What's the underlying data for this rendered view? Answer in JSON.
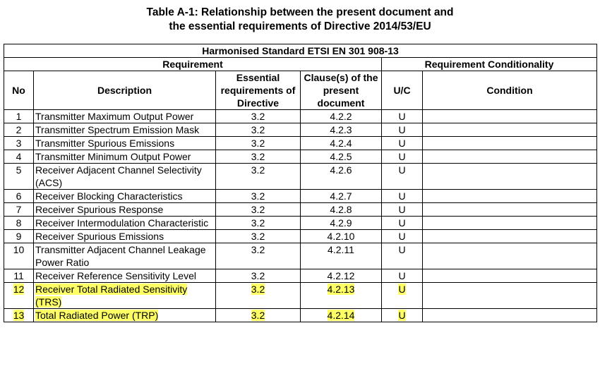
{
  "title": [
    "Table A-1: Relationship between the present document and",
    "the essential requirements of Directive 2014/53/EU"
  ],
  "table": {
    "standard": "Harmonised Standard ETSI EN 301 908-13",
    "group_headers": [
      "Requirement",
      "Requirement Conditionality"
    ],
    "columns": [
      "No",
      "Description",
      "Essential requirements of Directive",
      "Clause(s) of the present document",
      "U/C",
      "Condition"
    ],
    "rows": [
      {
        "no": "1",
        "description": "Transmitter Maximum Output Power",
        "essential": "3.2",
        "clause": "4.2.2",
        "uc": "U"
      },
      {
        "no": "2",
        "description": "Transmitter Spectrum Emission Mask",
        "essential": "3.2",
        "clause": "4.2.3",
        "uc": "U"
      },
      {
        "no": "3",
        "description": "Transmitter Spurious Emissions",
        "essential": "3.2",
        "clause": "4.2.4",
        "uc": "U"
      },
      {
        "no": "4",
        "description": "Transmitter Minimum Output Power",
        "essential": "3.2",
        "clause": "4.2.5",
        "uc": "U"
      },
      {
        "no": "5",
        "description": "Receiver Adjacent Channel Selectivity (ACS)",
        "essential": "3.2",
        "clause": "4.2.6",
        "uc": "U"
      },
      {
        "no": "6",
        "description": "Receiver Blocking Characteristics",
        "essential": "3.2",
        "clause": "4.2.7",
        "uc": "U"
      },
      {
        "no": "7",
        "description": "Receiver Spurious Response",
        "essential": "3.2",
        "clause": "4.2.8",
        "uc": "U"
      },
      {
        "no": "8",
        "description": "Receiver Intermodulation Characteristic",
        "essential": "3.2",
        "clause": "4.2.9",
        "uc": "U"
      },
      {
        "no": "9",
        "description": "Receiver Spurious Emissions",
        "essential": "3.2",
        "clause": "4.2.10",
        "uc": "U"
      },
      {
        "no": "10",
        "description": "Transmitter Adjacent Channel Leakage Power Ratio",
        "essential": "3.2",
        "clause": "4.2.11",
        "uc": "U"
      },
      {
        "no": "11",
        "description": "Receiver Reference Sensitivity Level",
        "essential": "3.2",
        "clause": "4.2.12",
        "uc": "U"
      },
      {
        "no": "12",
        "description": "Receiver Total Radiated Sensitivity (TRS)",
        "essential": "3.2",
        "clause": "4.2.13",
        "uc": "U",
        "highlighted": true
      },
      {
        "no": "13",
        "description": "Total Radiated Power (TRP)",
        "essential": "3.2",
        "clause": "4.2.14",
        "uc": "U",
        "highlighted": true
      }
    ]
  }
}
